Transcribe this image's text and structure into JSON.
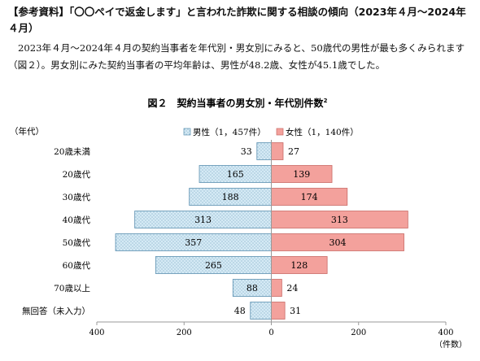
{
  "heading": "【参考資料】「〇〇ペイで返金します」と言われた詐欺に関する相談の傾向（2023年４月～2024年４月）",
  "paragraph": "2023年４月～2024年４月の契約当事者を年代別・男女別にみると、50歳代の男性が最も多くみられます（図２）。男女別にみた契約当事者の平均年齢は、男性が48.2歳、女性が45.1歳でした。",
  "chart_data": {
    "type": "bar",
    "orientation": "horizontal-pyramid",
    "title": "図２　契約当事者の男女別・年代別件数",
    "title_superscript": "2",
    "y_axis_label": "（年代）",
    "x_axis_unit": "（件数）",
    "categories": [
      "20歳未満",
      "20歳代",
      "30歳代",
      "40歳代",
      "50歳代",
      "60歳代",
      "70歳以上",
      "無回答（未入力）"
    ],
    "series": [
      {
        "name": "男性（1，457件）",
        "side": "left",
        "color": "#cfe6f2",
        "stroke": "#5a8fb0",
        "pattern": "dotted",
        "values": [
          33,
          165,
          188,
          313,
          357,
          265,
          88,
          48
        ]
      },
      {
        "name": "女性（1，140件）",
        "side": "right",
        "color": "#f3a19c",
        "stroke": "#c96a66",
        "pattern": "solid",
        "values": [
          27,
          139,
          174,
          313,
          304,
          128,
          24,
          31
        ]
      }
    ],
    "xlim": [
      -400,
      400
    ],
    "x_ticks": [
      {
        "value": -400,
        "label": "400"
      },
      {
        "value": -200,
        "label": "200"
      },
      {
        "value": 0,
        "label": "0"
      },
      {
        "value": 200,
        "label": "200"
      },
      {
        "value": 400,
        "label": "400"
      }
    ],
    "legend_position": "top-center",
    "grid": false
  }
}
